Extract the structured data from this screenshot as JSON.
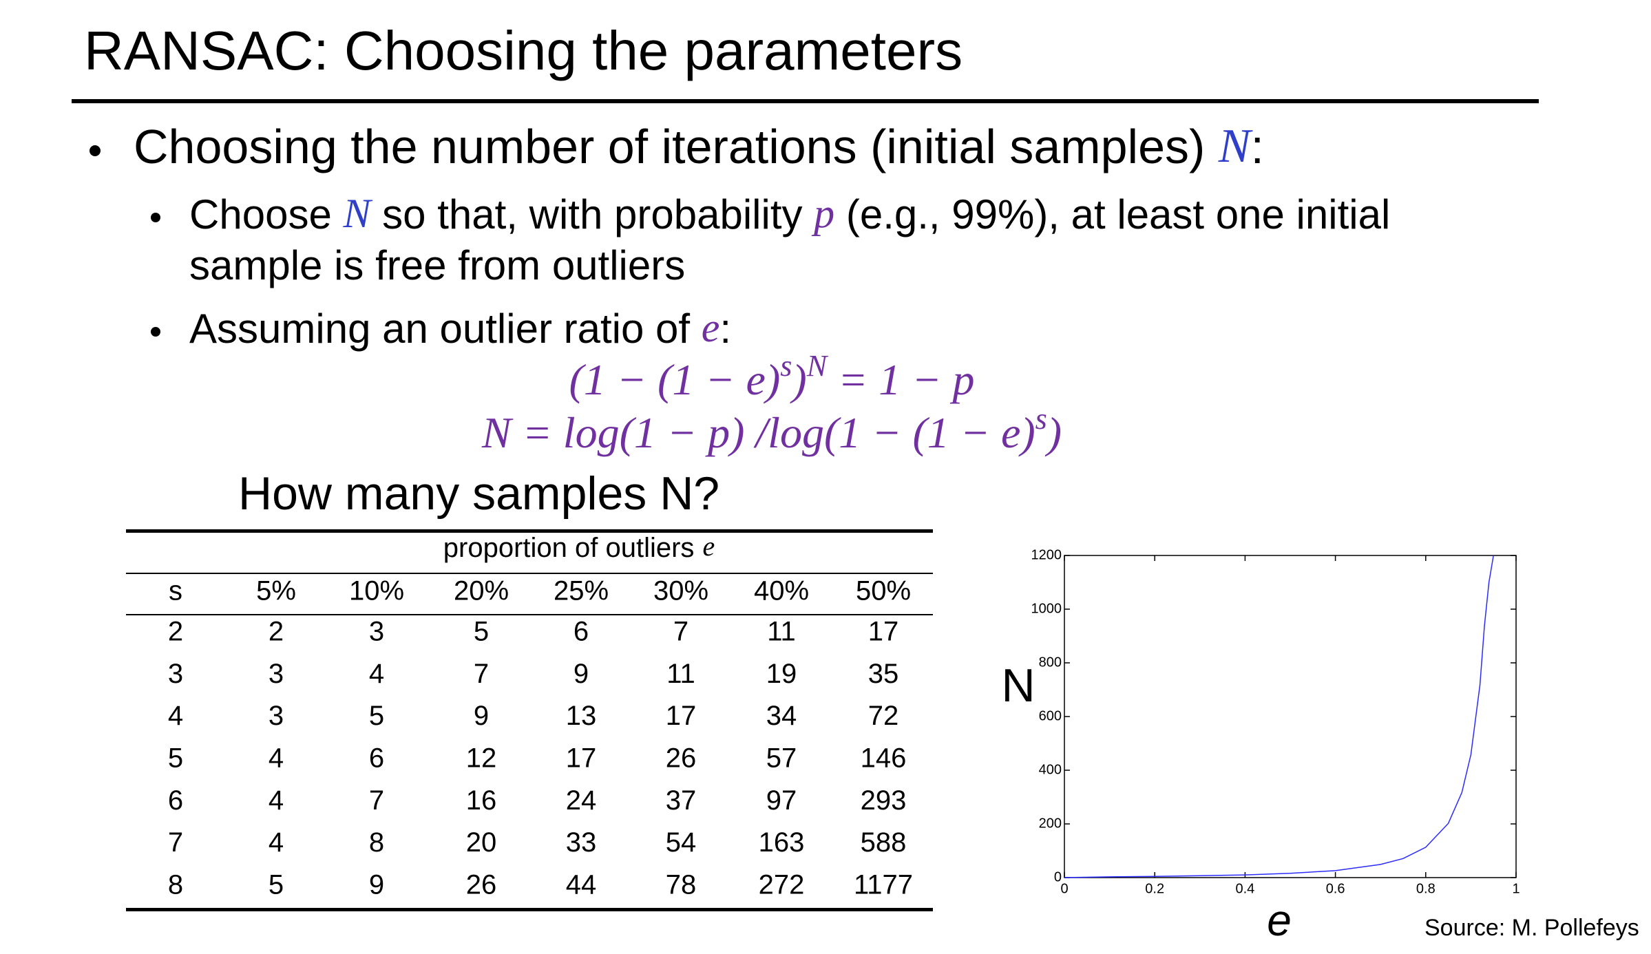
{
  "title": "RANSAC: Choosing the parameters",
  "bullets": [
    {
      "segments": [
        "Choosing the number of iterations (initial samples) ",
        "N",
        ":"
      ]
    },
    {
      "lines": [
        [
          "Choose ",
          "N",
          " so that, with probability ",
          "p",
          " (e.g., 99%), at least one initial"
        ],
        [
          "sample is free from outliers"
        ]
      ]
    },
    {
      "segments": [
        "Assuming an outlier ratio of ",
        "e",
        ":"
      ]
    }
  ],
  "formulas": [
    [
      "(1 − (1 − e)",
      "s",
      ")",
      "N",
      " = 1 − p"
    ],
    [
      "N = log(1 − p) /log(1 − (1 − e)",
      "s",
      ")"
    ]
  ],
  "table": {
    "caption": "How many samples N?",
    "group_header": "proportion of outliers",
    "group_var": "e",
    "columns": [
      "s",
      "5%",
      "10%",
      "20%",
      "25%",
      "30%",
      "40%",
      "50%"
    ],
    "rows": [
      [
        2,
        2,
        3,
        5,
        6,
        7,
        11,
        17
      ],
      [
        3,
        3,
        4,
        7,
        9,
        11,
        19,
        35
      ],
      [
        4,
        3,
        5,
        9,
        13,
        17,
        34,
        72
      ],
      [
        5,
        4,
        6,
        12,
        17,
        26,
        57,
        146
      ],
      [
        6,
        4,
        7,
        16,
        24,
        37,
        97,
        293
      ],
      [
        7,
        4,
        8,
        20,
        33,
        54,
        163,
        588
      ],
      [
        8,
        5,
        9,
        26,
        44,
        78,
        272,
        1177
      ]
    ]
  },
  "chart_data": {
    "type": "line",
    "x_label": "e",
    "y_label": "N",
    "x": [
      0,
      0.1,
      0.2,
      0.3,
      0.4,
      0.5,
      0.6,
      0.7,
      0.75,
      0.8,
      0.85,
      0.88,
      0.9,
      0.92,
      0.93,
      0.94,
      0.95
    ],
    "series": [
      {
        "color": "#2b2bff",
        "values": [
          0,
          3,
          4.5,
          7,
          10,
          16,
          26,
          49,
          71,
          113,
          202,
          317,
          458,
          717,
          938,
          1100,
          1200
        ]
      }
    ],
    "xlim": [
      0,
      1
    ],
    "ylim": [
      0,
      1200
    ],
    "xticks": [
      0,
      0.2,
      0.4,
      0.6,
      0.8,
      1
    ],
    "yticks": [
      0,
      200,
      400,
      600,
      800,
      1000,
      1200
    ]
  },
  "source": "Source: M. Pollefeys"
}
